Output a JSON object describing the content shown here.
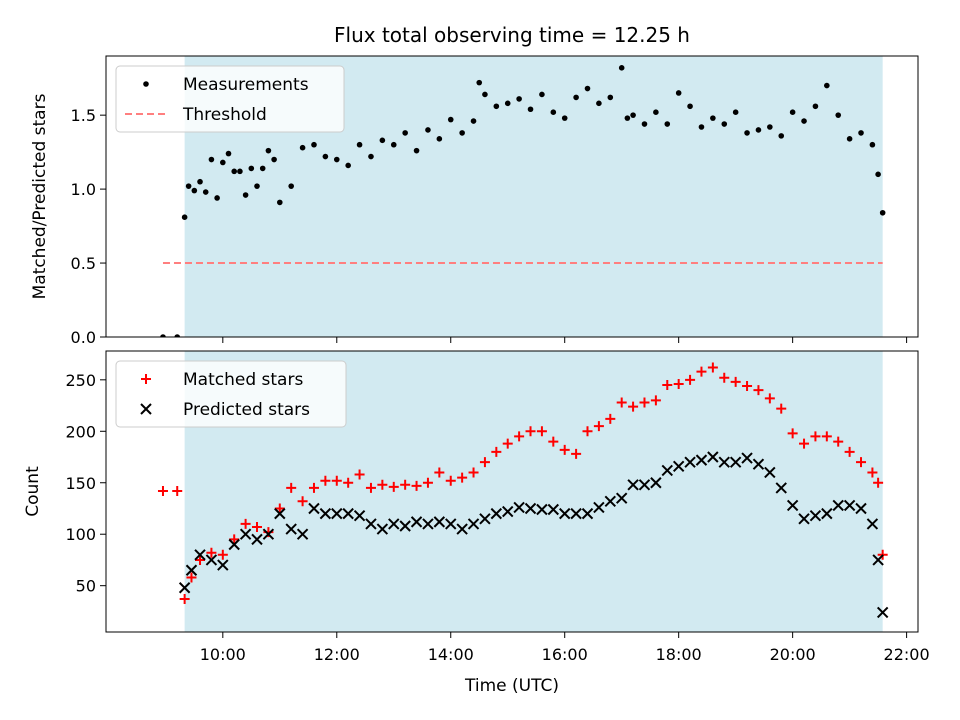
{
  "title": "Flux total observing time = 12.25 h",
  "colors": {
    "observing_span": "#add8e6",
    "measurements": "#000000",
    "threshold": "#ff7f7f",
    "matched": "#ff0000",
    "predicted": "#000000"
  },
  "chart_data": [
    {
      "type": "scatter",
      "ylabel": "Matched/Predicted stars",
      "xlim_hours": [
        7.95,
        22.2
      ],
      "ylim": [
        0,
        1.9
      ],
      "yticks": [
        "0.0",
        "0.5",
        "1.0",
        "1.5"
      ],
      "ytick_values": [
        0,
        0.5,
        1.0,
        1.5
      ],
      "grid": false,
      "legend_position": "upper left",
      "shaded_span_hours": [
        9.33,
        21.58
      ],
      "threshold": {
        "name": "Threshold",
        "value": 0.5,
        "x_hours": [
          8.95,
          21.58
        ]
      },
      "series": [
        {
          "name": "Measurements",
          "x_hours": [
            8.95,
            9.2,
            9.33,
            9.4,
            9.5,
            9.6,
            9.7,
            9.8,
            9.9,
            10.0,
            10.1,
            10.2,
            10.3,
            10.4,
            10.5,
            10.6,
            10.7,
            10.8,
            10.9,
            11.0,
            11.2,
            11.4,
            11.6,
            11.8,
            12.0,
            12.2,
            12.4,
            12.6,
            12.8,
            13.0,
            13.2,
            13.4,
            13.6,
            13.8,
            14.0,
            14.2,
            14.4,
            14.5,
            14.6,
            14.8,
            15.0,
            15.2,
            15.4,
            15.6,
            15.8,
            16.0,
            16.2,
            16.4,
            16.6,
            16.8,
            17.0,
            17.1,
            17.2,
            17.4,
            17.6,
            17.8,
            18.0,
            18.2,
            18.4,
            18.6,
            18.8,
            19.0,
            19.2,
            19.4,
            19.6,
            19.8,
            20.0,
            20.2,
            20.4,
            20.6,
            20.8,
            21.0,
            21.2,
            21.4,
            21.5,
            21.58
          ],
          "values": [
            0.0,
            0.0,
            0.81,
            1.02,
            0.99,
            1.05,
            0.98,
            1.2,
            0.94,
            1.18,
            1.24,
            1.12,
            1.12,
            0.96,
            1.14,
            1.02,
            1.14,
            1.26,
            1.2,
            0.91,
            1.02,
            1.28,
            1.3,
            1.22,
            1.2,
            1.16,
            1.3,
            1.22,
            1.33,
            1.3,
            1.38,
            1.26,
            1.4,
            1.34,
            1.47,
            1.38,
            1.46,
            1.72,
            1.64,
            1.56,
            1.58,
            1.61,
            1.54,
            1.64,
            1.52,
            1.48,
            1.62,
            1.68,
            1.58,
            1.62,
            1.82,
            1.48,
            1.5,
            1.44,
            1.52,
            1.44,
            1.65,
            1.56,
            1.42,
            1.48,
            1.44,
            1.52,
            1.38,
            1.4,
            1.42,
            1.36,
            1.52,
            1.46,
            1.56,
            1.7,
            1.5,
            1.34,
            1.38,
            1.3,
            1.1,
            0.84
          ]
        }
      ]
    },
    {
      "type": "scatter",
      "xlabel": "Time (UTC)",
      "ylabel": "Count",
      "xlim_hours": [
        7.95,
        22.2
      ],
      "ylim": [
        5,
        278
      ],
      "xticks": [
        "10:00",
        "12:00",
        "14:00",
        "16:00",
        "18:00",
        "20:00",
        "22:00"
      ],
      "xtick_hours": [
        10,
        12,
        14,
        16,
        18,
        20,
        22
      ],
      "yticks": [
        "50",
        "100",
        "150",
        "200",
        "250"
      ],
      "ytick_values": [
        50,
        100,
        150,
        200,
        250
      ],
      "grid": false,
      "legend_position": "upper left",
      "shaded_span_hours": [
        9.33,
        21.58
      ],
      "x_hours": [
        8.95,
        9.2,
        9.33,
        9.45,
        9.6,
        9.8,
        10.0,
        10.2,
        10.4,
        10.6,
        10.8,
        11.0,
        11.2,
        11.4,
        11.6,
        11.8,
        12.0,
        12.2,
        12.4,
        12.6,
        12.8,
        13.0,
        13.2,
        13.4,
        13.6,
        13.8,
        14.0,
        14.2,
        14.4,
        14.6,
        14.8,
        15.0,
        15.2,
        15.4,
        15.6,
        15.8,
        16.0,
        16.2,
        16.4,
        16.6,
        16.8,
        17.0,
        17.2,
        17.4,
        17.6,
        17.8,
        18.0,
        18.2,
        18.4,
        18.6,
        18.8,
        19.0,
        19.2,
        19.4,
        19.6,
        19.8,
        20.0,
        20.2,
        20.4,
        20.6,
        20.8,
        21.0,
        21.2,
        21.4,
        21.5,
        21.58
      ],
      "series": [
        {
          "name": "Matched stars",
          "values": [
            142,
            142,
            37,
            58,
            75,
            82,
            80,
            95,
            110,
            107,
            102,
            125,
            145,
            132,
            145,
            152,
            152,
            150,
            158,
            145,
            148,
            146,
            148,
            147,
            150,
            160,
            152,
            155,
            160,
            170,
            180,
            188,
            195,
            200,
            200,
            190,
            182,
            178,
            200,
            205,
            212,
            228,
            224,
            228,
            230,
            245,
            246,
            250,
            258,
            262,
            252,
            248,
            244,
            240,
            232,
            222,
            198,
            188,
            195,
            195,
            190,
            180,
            170,
            160,
            150,
            80
          ]
        },
        {
          "name": "Predicted stars",
          "values": [
            null,
            null,
            48,
            65,
            80,
            75,
            70,
            90,
            100,
            95,
            100,
            120,
            105,
            100,
            125,
            120,
            120,
            120,
            118,
            110,
            105,
            110,
            108,
            112,
            110,
            112,
            110,
            105,
            110,
            115,
            120,
            122,
            126,
            125,
            124,
            124,
            120,
            120,
            120,
            126,
            132,
            135,
            148,
            148,
            150,
            162,
            166,
            170,
            172,
            175,
            170,
            170,
            174,
            168,
            160,
            145,
            128,
            115,
            118,
            120,
            128,
            128,
            125,
            110,
            75,
            24
          ]
        }
      ]
    }
  ]
}
